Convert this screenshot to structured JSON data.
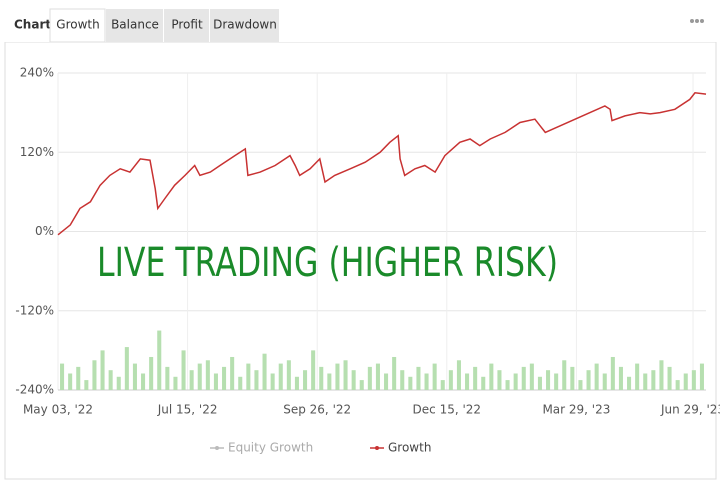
{
  "tabs": {
    "label": "Chart",
    "items": [
      "Growth",
      "Balance",
      "Profit",
      "Drawdown"
    ],
    "active": 0
  },
  "chart_data": {
    "type": "line",
    "annotation": "LIVE TRADING (HIGHER RISK)",
    "annotation_color": "#1a8a2a",
    "xlim": [
      0,
      100
    ],
    "xticks": [
      {
        "value": 0,
        "label": "May 03, '22"
      },
      {
        "value": 20,
        "label": "Jul 15, '22"
      },
      {
        "value": 40,
        "label": "Sep 26, '22"
      },
      {
        "value": 60,
        "label": "Dec 15, '22"
      },
      {
        "value": 80,
        "label": "Mar 29, '23"
      },
      {
        "value": 98,
        "label": "Jun 29, '23"
      }
    ],
    "ylim": [
      -240,
      240
    ],
    "yticks": [
      {
        "value": 240,
        "label": "240%"
      },
      {
        "value": 120,
        "label": "120%"
      },
      {
        "value": 0,
        "label": "0%"
      },
      {
        "value": -120,
        "label": "-120%"
      },
      {
        "value": -240,
        "label": "-240%"
      }
    ],
    "grid": true,
    "x": [
      0,
      1.9,
      3.4,
      5,
      6.5,
      8,
      9.6,
      11.1,
      12.7,
      14.2,
      15,
      15.4,
      16.5,
      18,
      19.6,
      21.1,
      21.9,
      23.5,
      25,
      27.3,
      28.9,
      29.3,
      31.2,
      33.5,
      35.8,
      36.6,
      37.3,
      38.9,
      40.4,
      41.2,
      42.7,
      45.1,
      47.4,
      49.7,
      51.2,
      52.5,
      52.8,
      53.5,
      55.1,
      56.6,
      58.2,
      59.7,
      62,
      63.6,
      65.1,
      66.7,
      69,
      71.3,
      73.6,
      74.4,
      75.2,
      77.5,
      79.8,
      82.1,
      84.4,
      85.2,
      85.5,
      87.5,
      89.8,
      91.4,
      92.9,
      95.2,
      97.5,
      98.3,
      100
    ],
    "series": [
      {
        "name": "Growth",
        "color": "#c83232",
        "values": [
          -5,
          10,
          35,
          45,
          70,
          85,
          95,
          90,
          110,
          108,
          65,
          35,
          50,
          70,
          85,
          100,
          85,
          90,
          100,
          115,
          125,
          85,
          90,
          100,
          115,
          100,
          85,
          95,
          110,
          75,
          85,
          95,
          105,
          120,
          135,
          145,
          110,
          85,
          95,
          100,
          90,
          115,
          135,
          140,
          130,
          140,
          150,
          165,
          170,
          160,
          150,
          160,
          170,
          180,
          190,
          185,
          168,
          175,
          180,
          178,
          180,
          185,
          200,
          210,
          208
        ]
      }
    ],
    "legend_items": [
      {
        "name": "Equity Growth",
        "color": "#bbbbbb"
      },
      {
        "name": "Growth",
        "color": "#c83232"
      }
    ],
    "bar_color": "#b6dfb0",
    "bar_values": [
      -200,
      -215,
      -205,
      -225,
      -195,
      -180,
      -210,
      -220,
      -175,
      -200,
      -215,
      -190,
      -150,
      -205,
      -220,
      -180,
      -210,
      -200,
      -195,
      -215,
      -205,
      -190,
      -220,
      -200,
      -210,
      -185,
      -215,
      -200,
      -195,
      -220,
      -210,
      -180,
      -205,
      -215,
      -200,
      -195,
      -210,
      -225,
      -205,
      -200,
      -215,
      -190,
      -210,
      -220,
      -205,
      -215,
      -200,
      -225,
      -210,
      -195,
      -215,
      -205,
      -220,
      -200,
      -210,
      -225,
      -215,
      -205,
      -200,
      -220,
      -210,
      -215,
      -195,
      -205,
      -225,
      -210,
      -200,
      -215,
      -190,
      -205,
      -220,
      -200,
      -215,
      -210,
      -195,
      -205,
      -225,
      -215,
      -210,
      -200
    ]
  }
}
